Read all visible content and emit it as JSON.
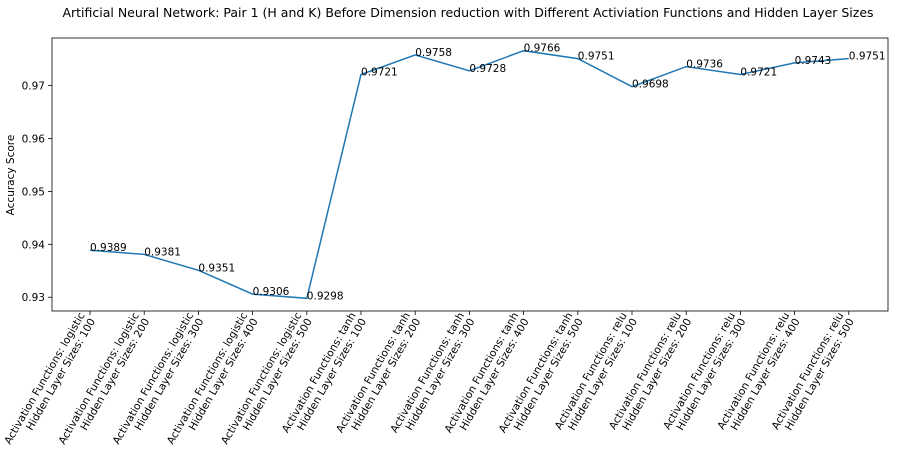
{
  "chart_data": {
    "type": "line",
    "title": "Artificial Neural Network: Pair 1 (H and K) Before Dimension reduction with Different Activiation Functions and Hidden Layer Sizes",
    "xlabel": "",
    "ylabel": "Accuracy Score",
    "ylim": [
      0.9274,
      0.979
    ],
    "yticks": [
      0.93,
      0.94,
      0.95,
      0.96,
      0.97
    ],
    "ytick_labels": [
      "0.93",
      "0.94",
      "0.95",
      "0.96",
      "0.97"
    ],
    "grid": false,
    "line_color": "#1f77b4",
    "categories": [
      [
        "Activation Functions: logistic",
        "Hidden Layer Sizes: 100"
      ],
      [
        "Activation Functions: logistic",
        "Hidden Layer Sizes: 200"
      ],
      [
        "Activation Functions: logistic",
        "Hidden Layer Sizes: 300"
      ],
      [
        "Activation Functions: logistic",
        "Hidden Layer Sizes: 400"
      ],
      [
        "Activation Functions: logistic",
        "Hidden Layer Sizes: 500"
      ],
      [
        "Activation Functions: tanh",
        "Hidden Layer Sizes: 100"
      ],
      [
        "Activation Functions: tanh",
        "Hidden Layer Sizes: 200"
      ],
      [
        "Activation Functions: tanh",
        "Hidden Layer Sizes: 300"
      ],
      [
        "Activation Functions: tanh",
        "Hidden Layer Sizes: 400"
      ],
      [
        "Activation Functions: tanh",
        "Hidden Layer Sizes: 500"
      ],
      [
        "Activation Functions: relu",
        "Hidden Layer Sizes: 100"
      ],
      [
        "Activation Functions: relu",
        "Hidden Layer Sizes: 200"
      ],
      [
        "Activation Functions: relu",
        "Hidden Layer Sizes: 300"
      ],
      [
        "Activation Functions: relu",
        "Hidden Layer Sizes: 400"
      ],
      [
        "Activation Functions: relu",
        "Hidden Layer Sizes: 500"
      ]
    ],
    "values": [
      0.9389,
      0.9381,
      0.9351,
      0.9306,
      0.9298,
      0.9721,
      0.9758,
      0.9728,
      0.9766,
      0.9751,
      0.9698,
      0.9736,
      0.9721,
      0.9743,
      0.9751
    ],
    "data_labels": [
      "0.9389",
      "0.9381",
      "0.9351",
      "0.9306",
      "0.9298",
      "0.9721",
      "0.9758",
      "0.9728",
      "0.9766",
      "0.9751",
      "0.9698",
      "0.9736",
      "0.9721",
      "0.9743",
      "0.9751"
    ]
  }
}
